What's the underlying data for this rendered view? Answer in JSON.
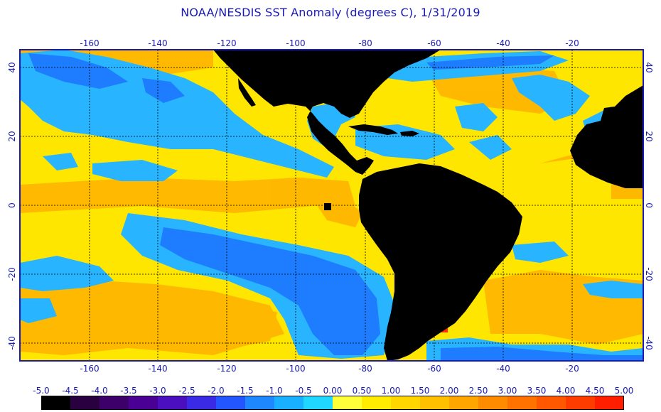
{
  "title": "NOAA/NESDIS SST Anomaly (degrees C), 1/31/2019",
  "axes": {
    "lon_ticks": [
      "-160",
      "-140",
      "-120",
      "-100",
      "-80",
      "-60",
      "-40",
      "-20"
    ],
    "lat_ticks": [
      "40",
      "20",
      "0",
      "-20",
      "-40"
    ]
  },
  "colorbar": {
    "labels": [
      "-5.0",
      "-4.5",
      "-4.0",
      "-3.5",
      "-3.0",
      "-2.5",
      "-2.0",
      "-1.5",
      "-1.0",
      "-0.5",
      "0.00",
      "0.50",
      "1.00",
      "1.50",
      "2.00",
      "2.50",
      "3.00",
      "3.50",
      "4.00",
      "4.50",
      "5.00"
    ],
    "colors": [
      "#000000",
      "#2a0040",
      "#3d006b",
      "#4a0095",
      "#4b0fc0",
      "#3a2ae6",
      "#2456ff",
      "#1e88ff",
      "#18b0ff",
      "#20d8ff",
      "#ffff3a",
      "#ffec00",
      "#ffd600",
      "#ffc000",
      "#ffa600",
      "#ff8c00",
      "#ff7200",
      "#ff5800",
      "#ff3c00",
      "#ff1e00"
    ]
  },
  "colors": {
    "land": "#000000",
    "ocean_neutral": "#ffea00",
    "ocean_warm": "#ffb400",
    "ocean_cool": "#28b4ff",
    "ocean_cold": "#1e7cff",
    "ocean_hot": "#ff2a00",
    "grid": "#000000",
    "text": "#1a1ab8"
  }
}
